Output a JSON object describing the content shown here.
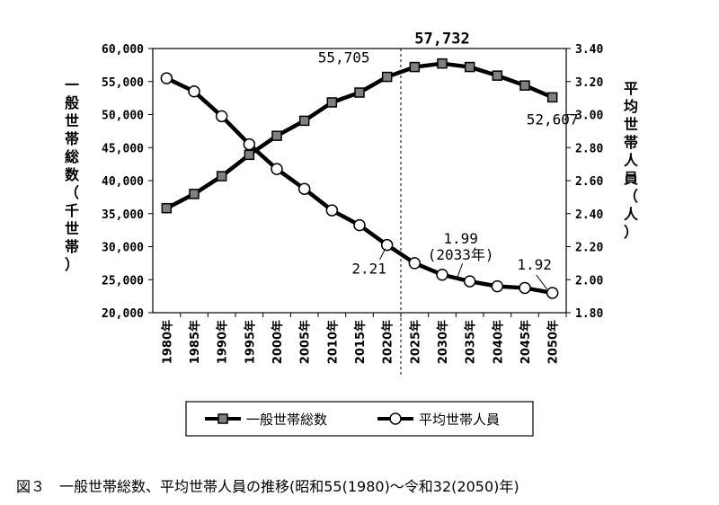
{
  "chart_data": {
    "type": "line",
    "categories": [
      "1980年",
      "1985年",
      "1990年",
      "1995年",
      "2000年",
      "2005年",
      "2010年",
      "2015年",
      "2020年",
      "2025年",
      "2030年",
      "2035年",
      "2040年",
      "2045年",
      "2050年"
    ],
    "series": [
      {
        "name": "一般世帯総数",
        "axis": "left",
        "marker": "square",
        "values": [
          35824,
          37980,
          40670,
          43900,
          46782,
          49063,
          51842,
          53332,
          55705,
          57200,
          57732,
          57200,
          55900,
          54400,
          52607
        ]
      },
      {
        "name": "平均世帯人員",
        "axis": "right",
        "marker": "circle",
        "values": [
          3.22,
          3.14,
          2.99,
          2.82,
          2.67,
          2.55,
          2.42,
          2.33,
          2.21,
          2.1,
          2.03,
          1.99,
          1.96,
          1.95,
          1.92
        ]
      }
    ],
    "y_left": {
      "label": "一般世帯総数（千世帯）",
      "range": [
        20000,
        60000
      ],
      "ticks": [
        "20,000",
        "25,000",
        "30,000",
        "35,000",
        "40,000",
        "45,000",
        "50,000",
        "55,000",
        "60,000"
      ]
    },
    "y_right": {
      "label": "平均世帯人員（人）",
      "range": [
        1.8,
        3.4
      ],
      "ticks": [
        "1.80",
        "2.00",
        "2.20",
        "2.40",
        "2.60",
        "2.80",
        "3.00",
        "3.20",
        "3.40"
      ]
    },
    "annotations": [
      {
        "text": "55,705",
        "series": 0,
        "index": 8
      },
      {
        "text": "57,732",
        "series": 0,
        "index": 10,
        "bold": true
      },
      {
        "text": "52,607",
        "series": 0,
        "index": 14
      },
      {
        "text": "2.21",
        "series": 1,
        "index": 8
      },
      {
        "text": "1.99",
        "series": 1,
        "index": 11
      },
      {
        "text": "(2033年)",
        "series": 1,
        "index": 11
      },
      {
        "text": "1.92",
        "series": 1,
        "index": 14
      }
    ],
    "divider_after_category": "2020年",
    "legend_position": "bottom",
    "grid": false
  },
  "caption": "図３　一般世帯総数、平均世帯人員の推移(昭和55(1980)～令和32(2050)年)"
}
